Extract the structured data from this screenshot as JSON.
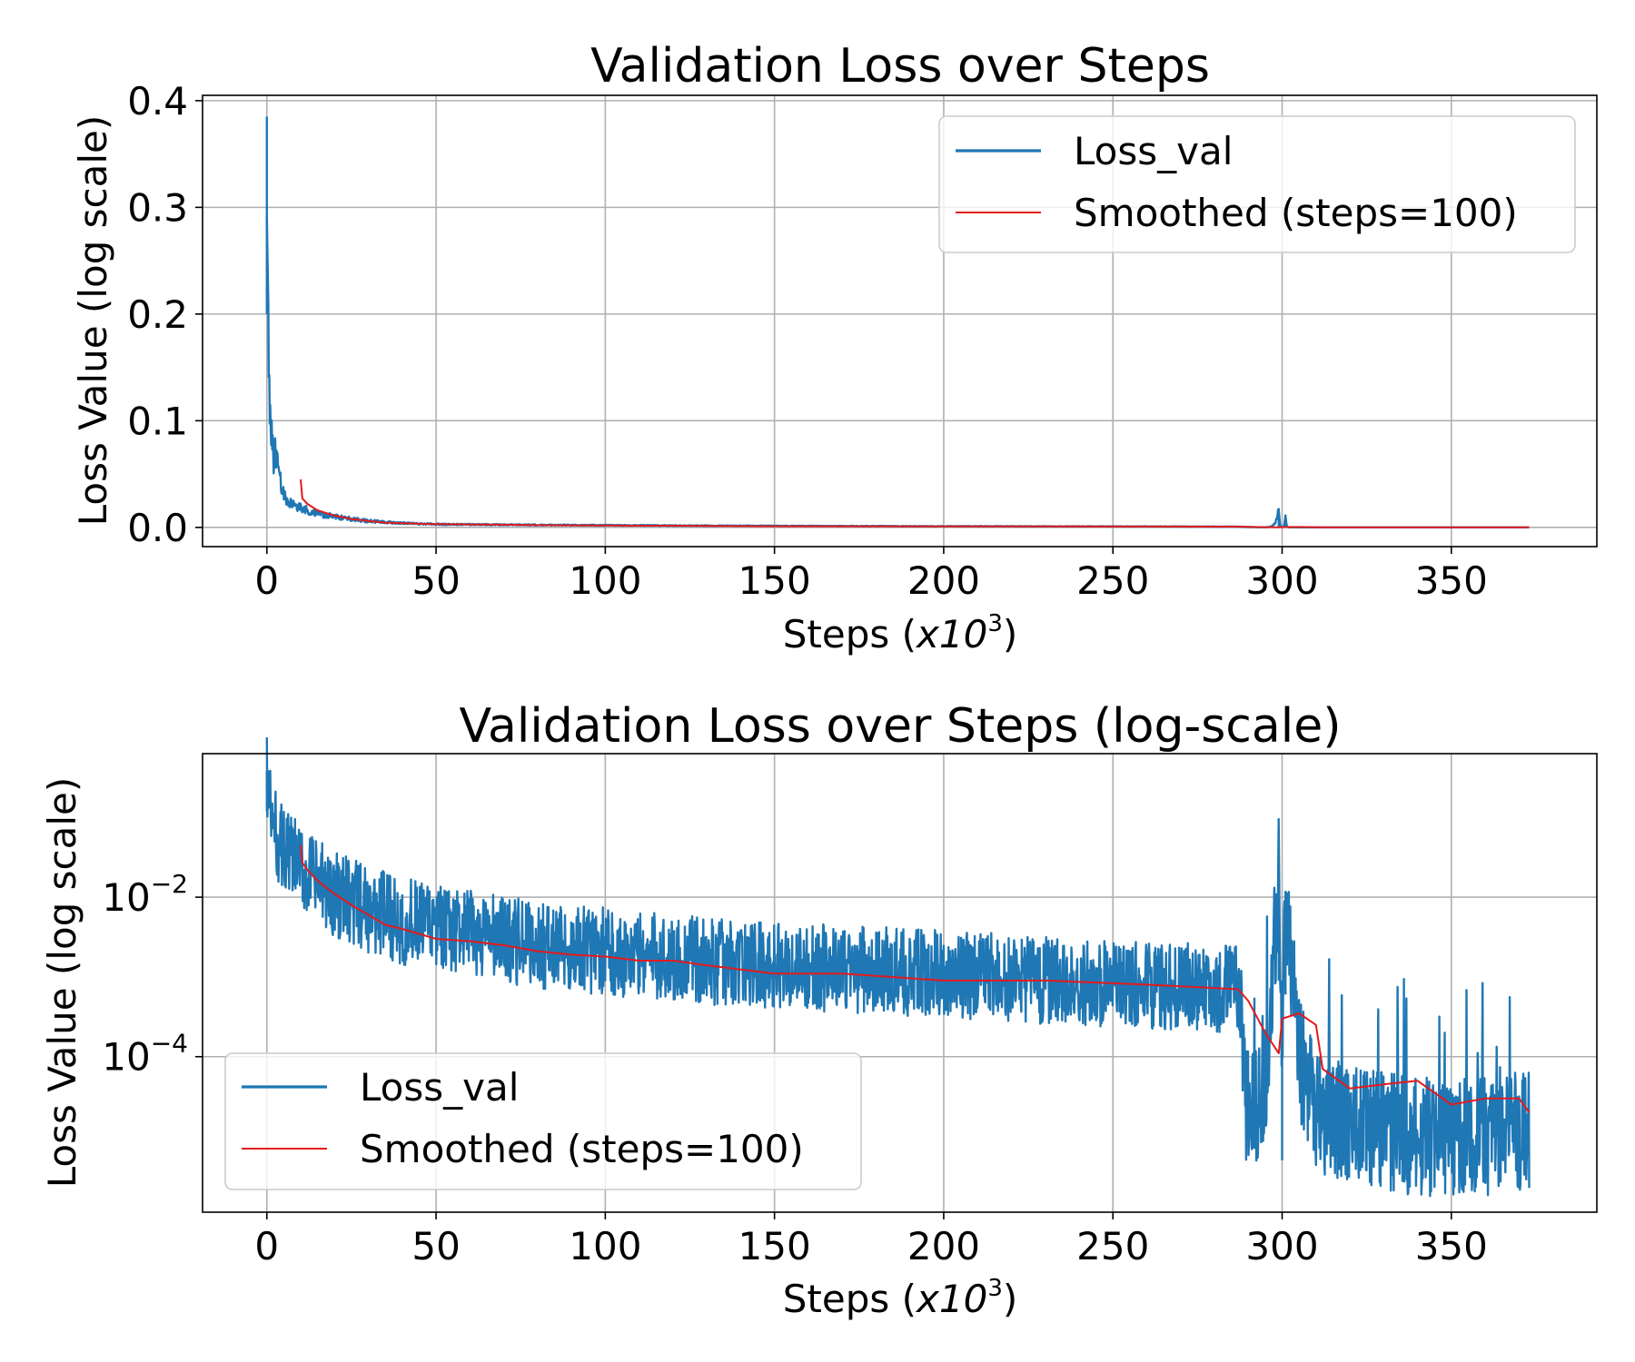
{
  "colors": {
    "raw": "#1f77b4",
    "smooth": "#e31a1c"
  },
  "chart_data": [
    {
      "id": "top",
      "type": "line",
      "title": "Validation Loss over Steps",
      "xlabel_main": "Steps",
      "xlabel_unit": "x10",
      "xlabel_exp": "3",
      "ylabel": "Loss Value (log scale)",
      "yscale": "linear",
      "xlim": [
        -19,
        393
      ],
      "ylim": [
        -0.018,
        0.405
      ],
      "xticks": [
        0,
        50,
        100,
        150,
        200,
        250,
        300,
        350
      ],
      "xtick_labels": [
        "0",
        "50",
        "100",
        "150",
        "200",
        "250",
        "300",
        "350"
      ],
      "yticks": [
        0.0,
        0.1,
        0.2,
        0.3,
        0.4
      ],
      "ytick_labels": [
        "0.0",
        "0.1",
        "0.2",
        "0.3",
        "0.4"
      ],
      "legend": {
        "position": "upper right",
        "entries": [
          "Loss_val",
          "Smoothed (steps=100)"
        ]
      },
      "grid": true,
      "series": [
        {
          "name": "Loss_val",
          "x": [
            0,
            0.4,
            1,
            2,
            3,
            4,
            5,
            6,
            8,
            10,
            13,
            16,
            20,
            25,
            30,
            40,
            50,
            70,
            100,
            150,
            200,
            250,
            287,
            295,
            299,
            300,
            301,
            302,
            310,
            330,
            350,
            373
          ],
          "y": [
            0.385,
            0.2,
            0.1,
            0.065,
            0.07,
            0.045,
            0.03,
            0.025,
            0.02,
            0.018,
            0.015,
            0.012,
            0.01,
            0.008,
            0.006,
            0.004,
            0.003,
            0.0025,
            0.002,
            0.0014,
            0.0011,
            0.0009,
            0.0007,
            0.0001,
            0.018,
            0.0002,
            0.012,
            0.0001,
            2e-05,
            1e-05,
            1e-05,
            1.5e-05
          ]
        },
        {
          "name": "Smoothed (steps=100)",
          "x": [
            10,
            10.5,
            12,
            15,
            20,
            25,
            30,
            35,
            40,
            50,
            60,
            70,
            80,
            90,
            100,
            110,
            120,
            130,
            150,
            170,
            200,
            230,
            260,
            287,
            290,
            295,
            299,
            300,
            305,
            310,
            312,
            320,
            330,
            340,
            350,
            360,
            370,
            373
          ],
          "y": [
            0.045,
            0.027,
            0.022,
            0.016,
            0.011,
            0.008,
            0.006,
            0.0045,
            0.004,
            0.003,
            0.0028,
            0.0025,
            0.0021,
            0.0019,
            0.0018,
            0.0016,
            0.0016,
            0.0014,
            0.0011,
            0.0011,
            0.0009,
            0.0009,
            0.0008,
            0.0007,
            0.0005,
            0.0002,
            0.00011,
            0.0003,
            0.00035,
            0.00025,
            7e-05,
            4e-05,
            4.5e-05,
            5e-05,
            2.5e-05,
            3e-05,
            3e-05,
            2e-05
          ]
        }
      ]
    },
    {
      "id": "bottom",
      "type": "line",
      "title": "Validation Loss over Steps (log-scale)",
      "xlabel_main": "Steps",
      "xlabel_unit": "x10",
      "xlabel_exp": "3",
      "ylabel": "Loss Value (log scale)",
      "yscale": "log",
      "xlim": [
        -19,
        393
      ],
      "ylim_log10": [
        -5.95,
        -0.2
      ],
      "xticks": [
        0,
        50,
        100,
        150,
        200,
        250,
        300,
        350
      ],
      "xtick_labels": [
        "0",
        "50",
        "100",
        "150",
        "200",
        "250",
        "300",
        "350"
      ],
      "yticks_log10": [
        -2,
        -4
      ],
      "ytick_base": "10",
      "ytick_exps": [
        "−2",
        "−4"
      ],
      "legend": {
        "position": "lower left",
        "entries": [
          "Loss_val",
          "Smoothed (steps=100)"
        ]
      },
      "grid": true,
      "series": [
        {
          "name": "Loss_val",
          "x": [
            0,
            1,
            2,
            5,
            10,
            15,
            20,
            30,
            40,
            50,
            60,
            80,
            100,
            120,
            150,
            180,
            200,
            230,
            260,
            287,
            289,
            292,
            295,
            299,
            300,
            301,
            305,
            310,
            320,
            330,
            340,
            350,
            360,
            373
          ],
          "y": [
            0.385,
            0.12,
            0.07,
            0.04,
            0.022,
            0.015,
            0.011,
            0.007,
            0.005,
            0.004,
            0.0035,
            0.0025,
            0.0021,
            0.0017,
            0.0014,
            0.0012,
            0.0011,
            0.0009,
            0.0008,
            0.0007,
            3e-05,
            2e-05,
            4e-05,
            0.018,
            0.0001,
            0.012,
            0.0001,
            2e-05,
            1.5e-05,
            1.2e-05,
            1e-05,
            1e-05,
            1e-05,
            1.2e-05
          ]
        },
        {
          "name": "Smoothed (steps=100)",
          "x": [
            10,
            10.5,
            12,
            15,
            20,
            25,
            30,
            35,
            40,
            50,
            60,
            70,
            80,
            90,
            100,
            110,
            120,
            130,
            150,
            170,
            200,
            230,
            260,
            287,
            290,
            295,
            299,
            300,
            305,
            310,
            312,
            320,
            330,
            340,
            350,
            360,
            370,
            373
          ],
          "y": [
            0.045,
            0.027,
            0.022,
            0.016,
            0.011,
            0.008,
            0.006,
            0.0045,
            0.004,
            0.003,
            0.0028,
            0.0025,
            0.0021,
            0.0019,
            0.0018,
            0.0016,
            0.0016,
            0.0014,
            0.0011,
            0.0011,
            0.0009,
            0.0009,
            0.0008,
            0.0007,
            0.0005,
            0.0002,
            0.00011,
            0.0003,
            0.00035,
            0.00025,
            7e-05,
            4e-05,
            4.5e-05,
            5e-05,
            2.5e-05,
            3e-05,
            3e-05,
            2e-05
          ]
        }
      ]
    }
  ]
}
